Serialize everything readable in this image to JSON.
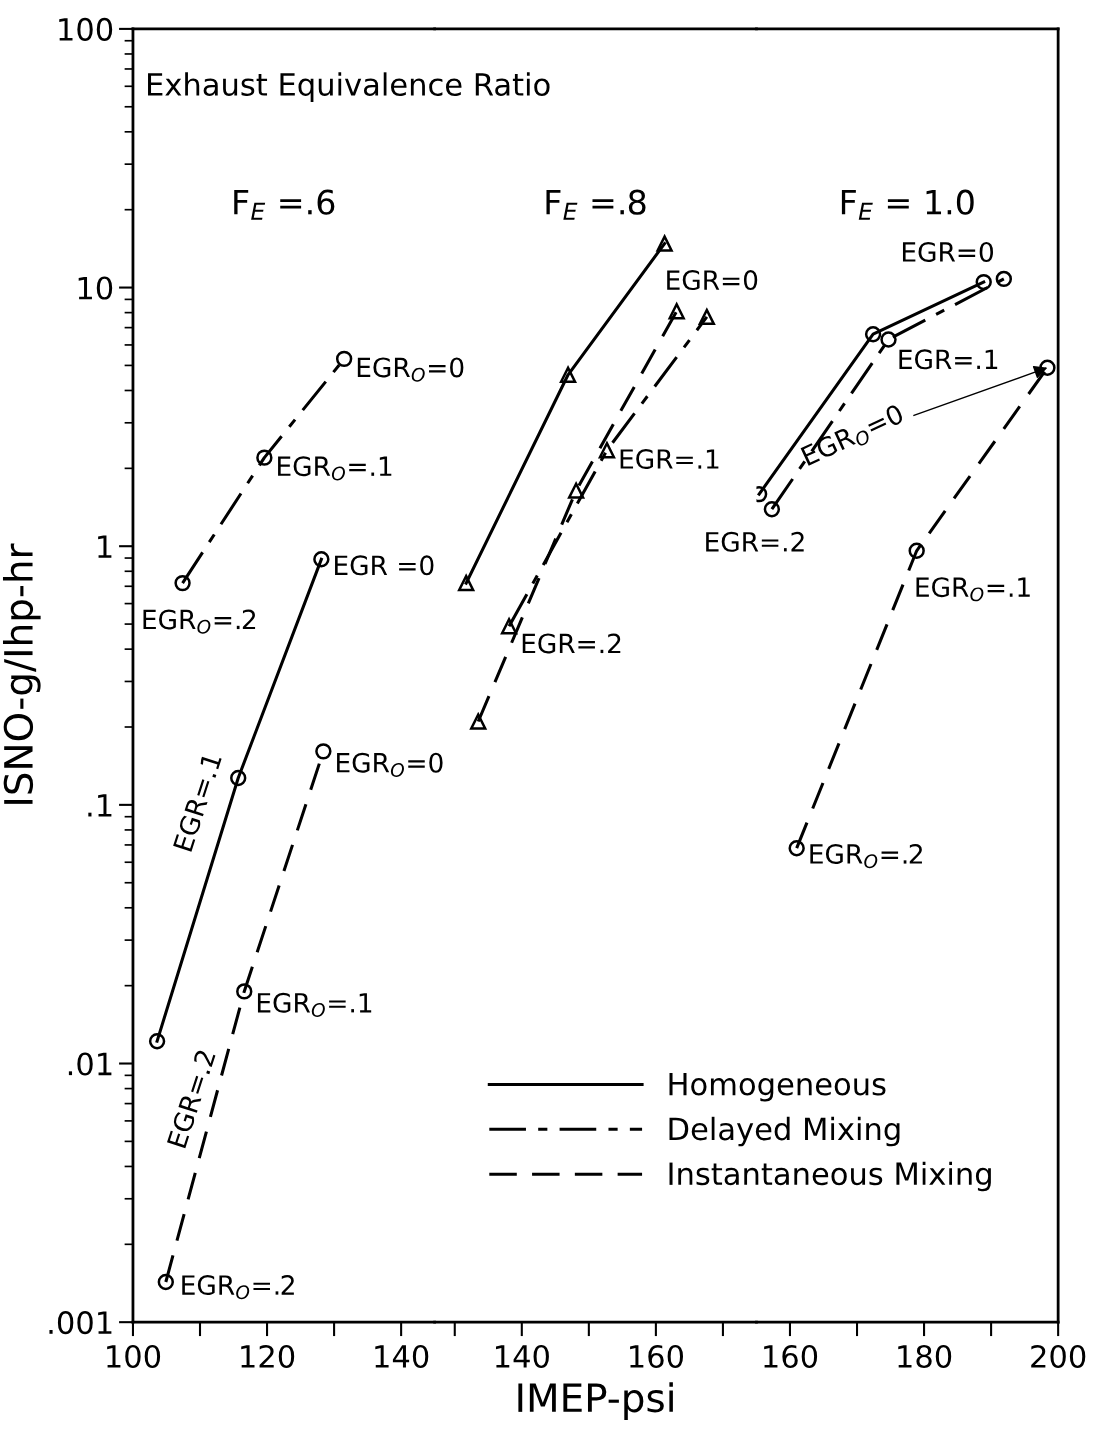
{
  "chart_data": [
    {
      "type": "line",
      "title": "F$_{E}$ =.6",
      "ylabel": "ISNO-g/Ihp-hr",
      "log": "y",
      "xlim": [
        100,
        145
      ],
      "xticks": [
        100,
        {
          "value": 110,
          "label": null
        },
        120,
        {
          "value": 130,
          "label": null
        },
        140
      ],
      "ylim": [
        0.001,
        100
      ],
      "yticks": [
        {
          "value": 0.001,
          "label": ".001"
        },
        {
          "value": 0.01,
          "label": ".01"
        },
        {
          "value": 0.1,
          "label": ".1"
        },
        1,
        10,
        100
      ],
      "grid": false,
      "legend": "bottom right",
      "marker": "circle",
      "series": [
        {
          "name": "Homogeneous",
          "color": "#000000",
          "line_style": "solid",
          "x": [
            103.6,
            115.7,
            128.1
          ],
          "values": [
            0.0122,
            0.127,
            0.89
          ]
        },
        {
          "name": "Delayed Mixing",
          "color": "#000000",
          "line_style": "dashdot",
          "x": [
            107.4,
            119.6,
            131.5
          ],
          "values": [
            0.72,
            2.2,
            5.3
          ]
        },
        {
          "name": "Instantaneous Mixing",
          "color": "#000000",
          "line_style": "dashed",
          "x": [
            104.9,
            116.6,
            128.4
          ],
          "values": [
            0.00143,
            0.019,
            0.161
          ]
        }
      ],
      "annotations": [
        "Exhaust Equivalence Ratio",
        {
          "text": "EGR$_{O}$=0",
          "x": 131.5,
          "y": 5.3
        },
        {
          "text": "EGR$_{O}$=.1",
          "x": 119.6,
          "y": 2.2
        },
        {
          "text": "EGR$_{O}$=.2",
          "x": 107.4,
          "y": 0.72
        },
        {
          "text": "EGR =0",
          "x": 128.1,
          "y": 0.89
        },
        {
          "text": "EGR=.1",
          "x": 115.7,
          "y": 0.127
        },
        {
          "text": "EGR=.2",
          "x": 103.6,
          "y": 0.0122
        },
        {
          "text": "EGR$_{O}$=0",
          "x": 128.4,
          "y": 0.161
        },
        {
          "text": "EGR$_{O}$=.1",
          "x": 116.6,
          "y": 0.019
        },
        {
          "text": "EGR$_{O}$=.2",
          "x": 104.9,
          "y": 0.00143
        }
      ]
    },
    {
      "type": "line",
      "title": "F$_{E}$ =.8",
      "xlabel": "IMEP-psi",
      "log": "y",
      "xlim": [
        127,
        175
      ],
      "xticks": [
        {
          "value": 130,
          "label": null
        },
        140,
        {
          "value": 150,
          "label": null
        },
        160,
        {
          "value": 170,
          "label": null
        }
      ],
      "ylim": [
        0.001,
        100
      ],
      "tick_labels": "x",
      "grid": false,
      "marker": "triangle",
      "series": [
        {
          "color": "#000000",
          "line_style": "solid",
          "x": [
            131.7,
            146.9,
            161.3
          ],
          "values": [
            0.72,
            4.6,
            14.8
          ]
        },
        {
          "color": "#000000",
          "line_style": "dashdot",
          "x": [
            138.1,
            152.7,
            167.6
          ],
          "values": [
            0.49,
            2.35,
            7.7
          ]
        },
        {
          "color": "#000000",
          "line_style": "dashed",
          "x": [
            133.5,
            148.1,
            163.1
          ],
          "values": [
            0.21,
            1.64,
            8.1
          ]
        }
      ],
      "annotations": [
        {
          "text": "EGR=0",
          "x": 161.3,
          "y": 14.8
        },
        {
          "text": "EGR=.1",
          "x": 152.7,
          "y": 2.35
        },
        {
          "text": "EGR=.2",
          "x": 138.1,
          "y": 0.49
        }
      ]
    },
    {
      "type": "line",
      "title": "F$_{E}$ = 1.0",
      "log": "y",
      "xlim": [
        155,
        200
      ],
      "xticks": [
        160,
        {
          "value": 170,
          "label": null
        },
        180,
        {
          "value": 190,
          "label": null
        },
        200
      ],
      "ylim": [
        0.001,
        100
      ],
      "tick_labels": "x",
      "grid": false,
      "marker": "circle",
      "series": [
        {
          "color": "#000000",
          "line_style": "solid",
          "x": [
            155.4,
            172.4,
            188.9
          ],
          "values": [
            1.59,
            6.6,
            10.5
          ]
        },
        {
          "color": "#000000",
          "line_style": "dashdot",
          "x": [
            157.3,
            174.7,
            191.9
          ],
          "values": [
            1.39,
            6.3,
            10.8
          ]
        },
        {
          "color": "#000000",
          "line_style": "dashed",
          "x": [
            161.0,
            178.9,
            198.4
          ],
          "values": [
            0.068,
            0.96,
            4.9
          ]
        }
      ],
      "annotations": [
        {
          "text": "EGR=0",
          "x": 188.9,
          "y": 10.5
        },
        {
          "text": "EGR=.1",
          "x": 174.7,
          "y": 6.3
        },
        {
          "text": "EGR=.2",
          "x": 155.4,
          "y": 1.59
        },
        {
          "text": "EGR$_{O}$=0",
          "x": 198.4,
          "y": 4.9
        },
        {
          "text": "EGR$_{O}$=.1",
          "x": 178.9,
          "y": 0.96
        },
        {
          "text": "EGR$_{O}$=.2",
          "x": 161.0,
          "y": 0.068
        }
      ]
    }
  ]
}
